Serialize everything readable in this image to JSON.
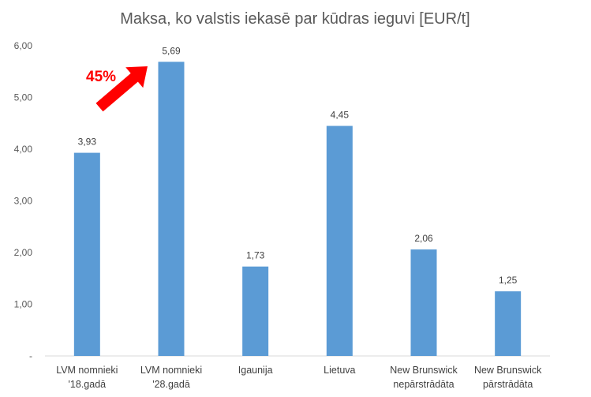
{
  "chart_data": {
    "type": "bar",
    "title": "Maksa, ko valstis iekasē par kūdras ieguvi [EUR/t]",
    "categories": [
      [
        "LVM nomnieki",
        "'18.gadā"
      ],
      [
        "LVM nomnieki",
        "'28.gadā"
      ],
      [
        "Igaunija"
      ],
      [
        "Lietuva"
      ],
      [
        "New Brunswick",
        "nepārstrādāta"
      ],
      [
        "New Brunswick",
        "pārstrādāta"
      ]
    ],
    "values": [
      3.93,
      5.69,
      1.73,
      4.45,
      2.06,
      1.25
    ],
    "value_labels": [
      "3,93",
      "5,69",
      "1,73",
      "4,45",
      "2,06",
      "1,25"
    ],
    "yticks": [
      0,
      1,
      2,
      3,
      4,
      5,
      6
    ],
    "ytick_labels": [
      "-",
      "1,00",
      "2,00",
      "3,00",
      "4,00",
      "5,00",
      "6,00"
    ],
    "ylim": [
      0,
      6
    ],
    "grid": false,
    "legend": "none",
    "bar_color": "#5b9bd5",
    "annotation": {
      "text": "45%",
      "color": "#ff0000",
      "from_category_index": 0,
      "to_category_index": 1
    }
  }
}
